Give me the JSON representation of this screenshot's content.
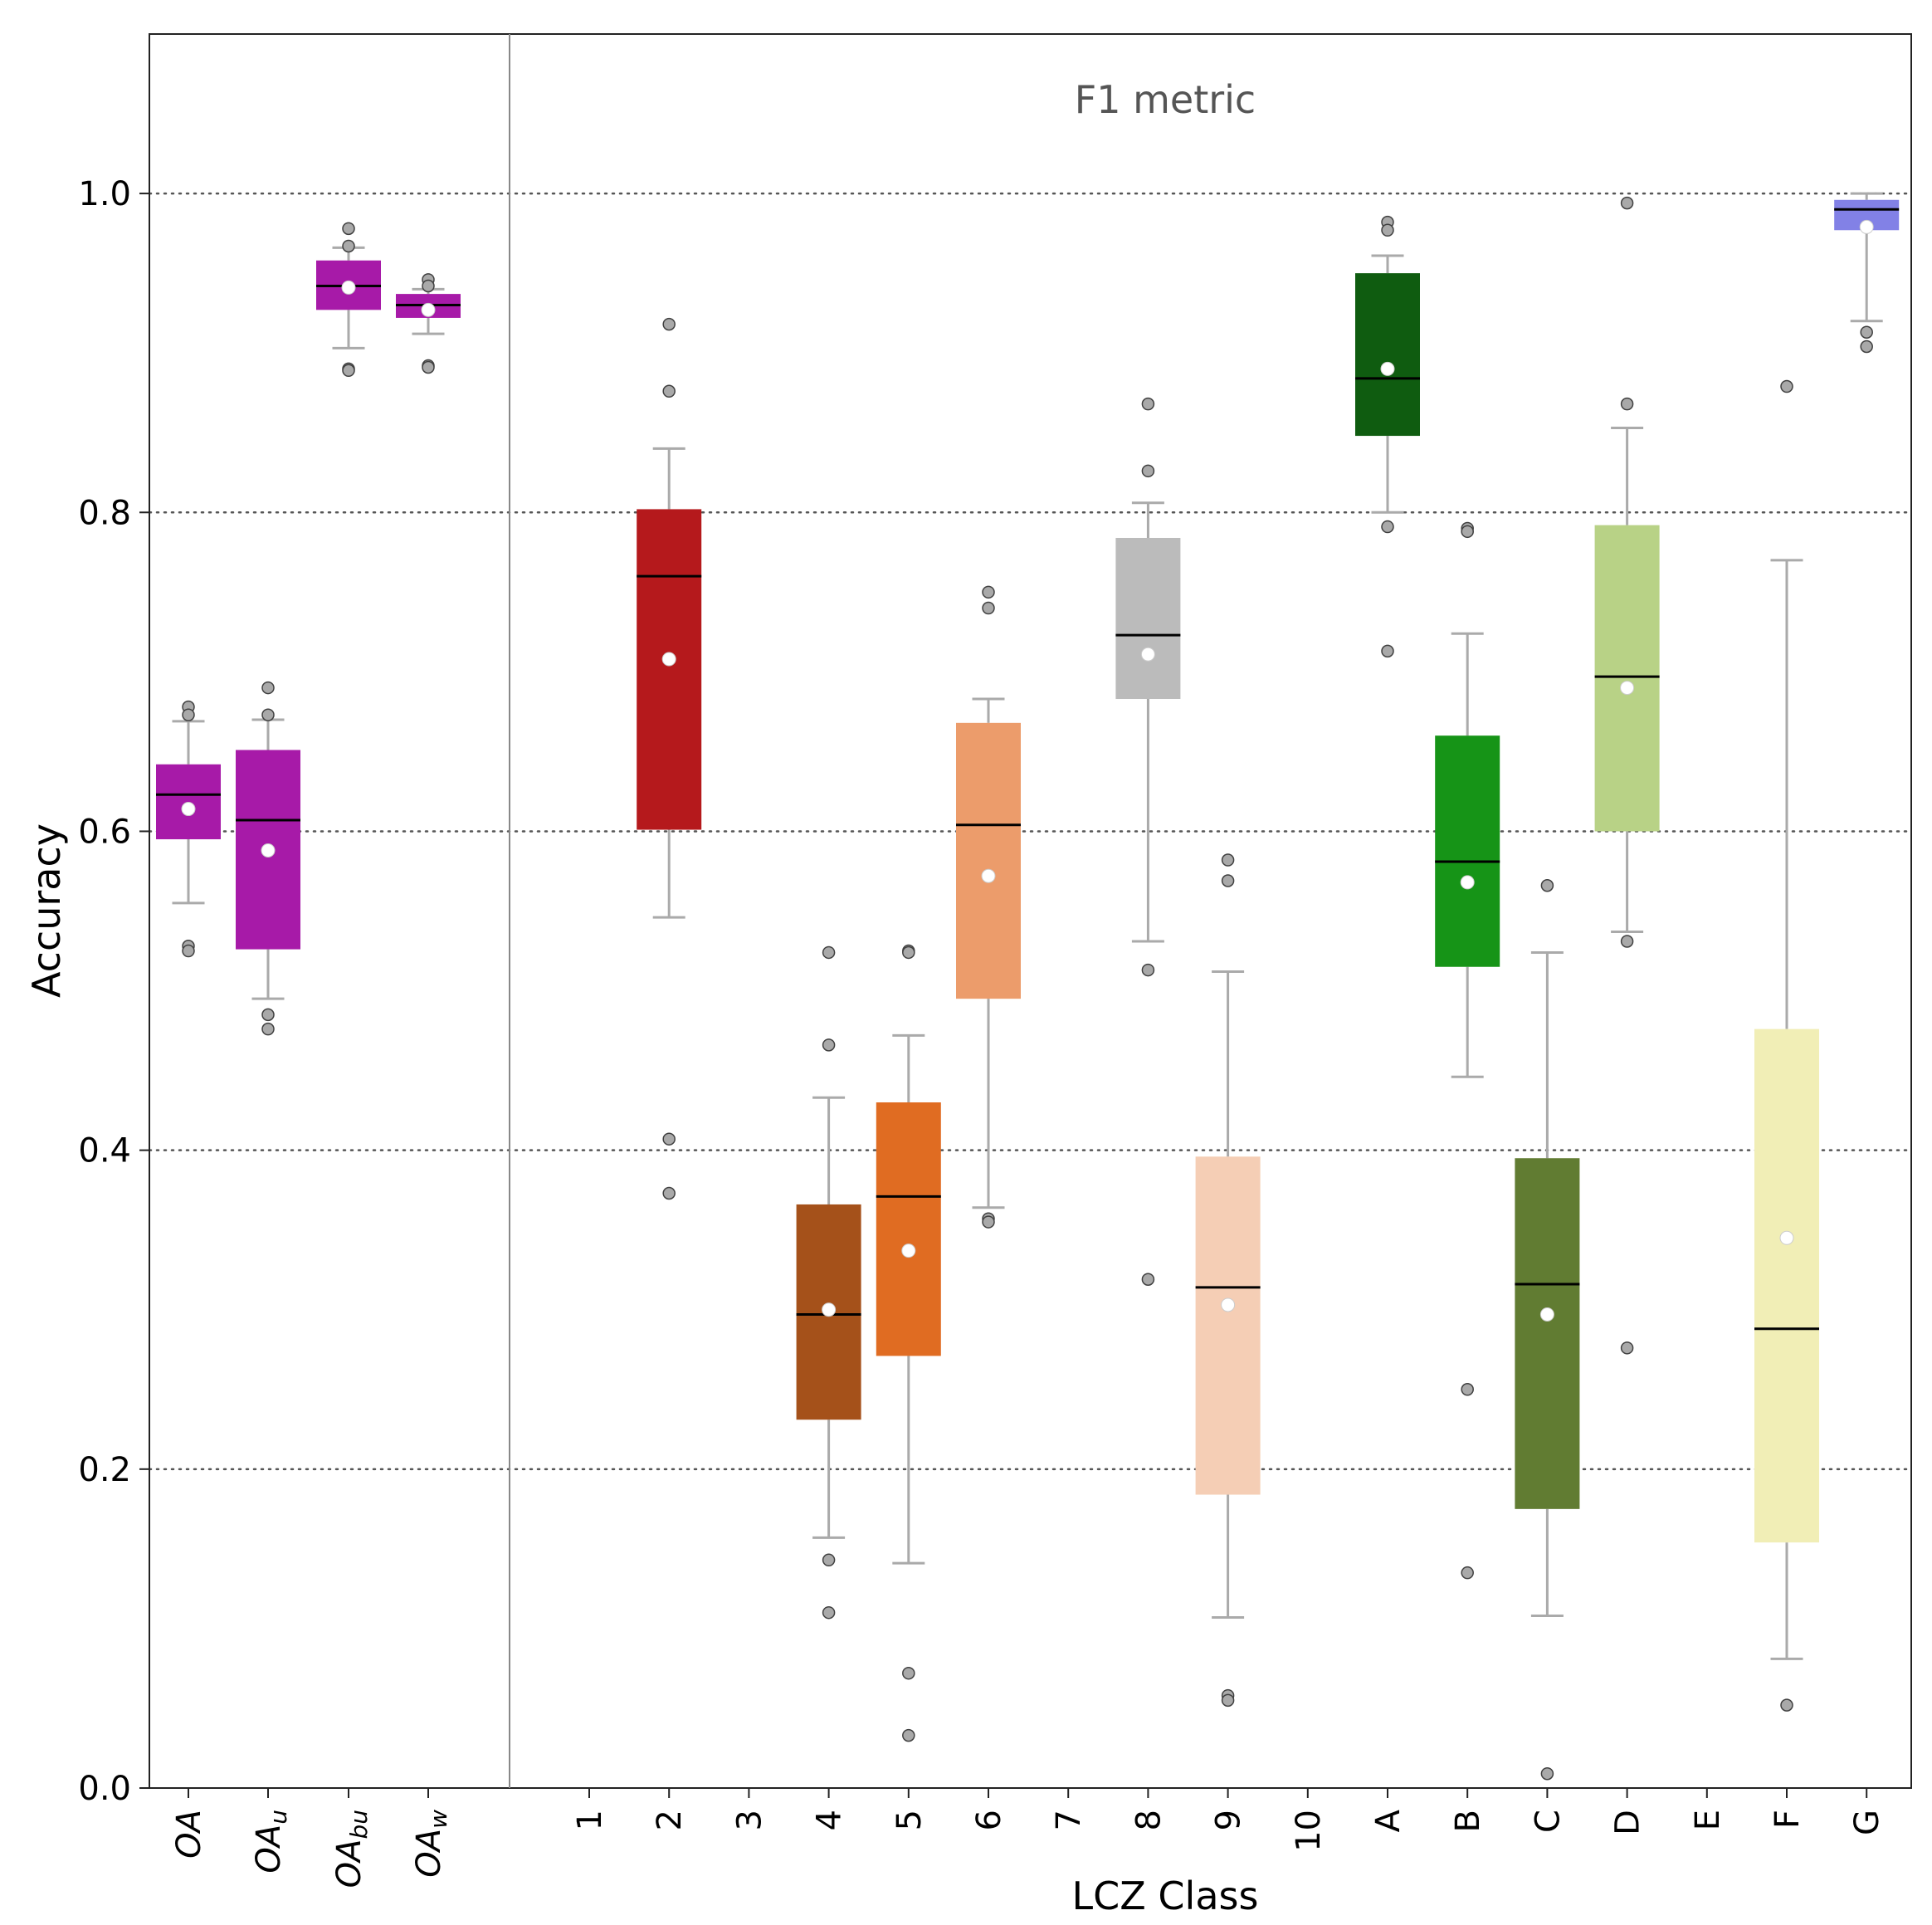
{
  "chart_data": {
    "type": "box",
    "title": "",
    "annotation": "F1 metric",
    "xlabel": "LCZ Class",
    "ylabel": "Accuracy",
    "ylim": [
      0.0,
      1.1
    ],
    "yticks": [
      "0.0",
      "0.2",
      "0.4",
      "0.6",
      "0.8",
      "1.0"
    ],
    "grid": "horizontal dotted",
    "overall": [
      {
        "base": "OA",
        "sub": "",
        "color": "#a71aa8",
        "q1": 0.595,
        "median": 0.623,
        "q3": 0.642,
        "mean": 0.614,
        "whisker_low": 0.555,
        "whisker_high": 0.669,
        "outliers": [
          0.678,
          0.673,
          0.528,
          0.525
        ]
      },
      {
        "base": "OA",
        "sub": "u",
        "color": "#a71aa8",
        "q1": 0.526,
        "median": 0.607,
        "q3": 0.651,
        "mean": 0.588,
        "whisker_low": 0.495,
        "whisker_high": 0.67,
        "outliers": [
          0.69,
          0.673,
          0.485,
          0.476
        ]
      },
      {
        "base": "OA",
        "sub": "bu",
        "color": "#a71aa8",
        "q1": 0.927,
        "median": 0.942,
        "q3": 0.958,
        "mean": 0.941,
        "whisker_low": 0.903,
        "whisker_high": 0.966,
        "outliers": [
          0.978,
          0.967,
          0.89,
          0.889
        ]
      },
      {
        "base": "OA",
        "sub": "w",
        "color": "#a71aa8",
        "q1": 0.922,
        "median": 0.93,
        "q3": 0.937,
        "mean": 0.927,
        "whisker_low": 0.912,
        "whisker_high": 0.94,
        "outliers": [
          0.946,
          0.942,
          0.892,
          0.891
        ]
      }
    ],
    "classes": [
      {
        "label": "1",
        "box": null
      },
      {
        "label": "2",
        "box": {
          "color": "#b5191c",
          "q1": 0.601,
          "median": 0.76,
          "q3": 0.802,
          "mean": 0.708,
          "whisker_low": 0.546,
          "whisker_high": 0.84,
          "outliers": [
            0.918,
            0.876,
            0.407,
            0.373
          ]
        }
      },
      {
        "label": "3",
        "box": null
      },
      {
        "label": "4",
        "box": {
          "color": "#a5511a",
          "q1": 0.231,
          "median": 0.297,
          "q3": 0.366,
          "mean": 0.3,
          "whisker_low": 0.157,
          "whisker_high": 0.433,
          "outliers": [
            0.524,
            0.466,
            0.143,
            0.11
          ]
        }
      },
      {
        "label": "5",
        "box": {
          "color": "#e06c22",
          "q1": 0.271,
          "median": 0.371,
          "q3": 0.43,
          "mean": 0.337,
          "whisker_low": 0.141,
          "whisker_high": 0.472,
          "outliers": [
            0.525,
            0.524,
            0.072,
            0.033
          ]
        }
      },
      {
        "label": "6",
        "box": {
          "color": "#ec9c6b",
          "q1": 0.495,
          "median": 0.604,
          "q3": 0.668,
          "mean": 0.572,
          "whisker_low": 0.364,
          "whisker_high": 0.683,
          "outliers": [
            0.75,
            0.74,
            0.357,
            0.355
          ]
        }
      },
      {
        "label": "7",
        "box": null
      },
      {
        "label": "8",
        "box": {
          "color": "#bbbbbb",
          "q1": 0.683,
          "median": 0.723,
          "q3": 0.784,
          "mean": 0.711,
          "whisker_low": 0.531,
          "whisker_high": 0.806,
          "outliers": [
            0.868,
            0.826,
            0.513,
            0.319
          ]
        }
      },
      {
        "label": "9",
        "box": {
          "color": "#f5ceb5",
          "q1": 0.184,
          "median": 0.314,
          "q3": 0.396,
          "mean": 0.303,
          "whisker_low": 0.107,
          "whisker_high": 0.512,
          "outliers": [
            0.582,
            0.569,
            0.058,
            0.055
          ]
        }
      },
      {
        "label": "10",
        "box": null
      },
      {
        "label": "A",
        "box": {
          "color": "#0f5c10",
          "q1": 0.848,
          "median": 0.884,
          "q3": 0.95,
          "mean": 0.89,
          "whisker_low": 0.8,
          "whisker_high": 0.961,
          "outliers": [
            0.982,
            0.977,
            0.791,
            0.713
          ]
        }
      },
      {
        "label": "B",
        "box": {
          "color": "#169417",
          "q1": 0.515,
          "median": 0.581,
          "q3": 0.66,
          "mean": 0.568,
          "whisker_low": 0.446,
          "whisker_high": 0.724,
          "outliers": [
            0.79,
            0.788,
            0.25,
            0.135
          ]
        }
      },
      {
        "label": "C",
        "box": {
          "color": "#617c32",
          "q1": 0.175,
          "median": 0.316,
          "q3": 0.395,
          "mean": 0.297,
          "whisker_low": 0.108,
          "whisker_high": 0.524,
          "outliers": [
            0.566,
            0.009
          ]
        }
      },
      {
        "label": "D",
        "box": {
          "color": "#b8d286",
          "q1": 0.6,
          "median": 0.697,
          "q3": 0.792,
          "mean": 0.69,
          "whisker_low": 0.537,
          "whisker_high": 0.853,
          "outliers": [
            0.994,
            0.868,
            0.531,
            0.276
          ]
        }
      },
      {
        "label": "E",
        "box": null
      },
      {
        "label": "F",
        "box": {
          "color": "#f1eeb6",
          "q1": 0.154,
          "median": 0.288,
          "q3": 0.476,
          "mean": 0.345,
          "whisker_low": 0.081,
          "whisker_high": 0.77,
          "outliers": [
            0.879,
            0.052
          ]
        }
      },
      {
        "label": "G",
        "box": {
          "color": "#8281e6",
          "q1": 0.977,
          "median": 0.99,
          "q3": 0.996,
          "mean": 0.979,
          "whisker_low": 0.92,
          "whisker_high": 1.0,
          "outliers": [
            0.913,
            0.904
          ]
        }
      }
    ]
  }
}
